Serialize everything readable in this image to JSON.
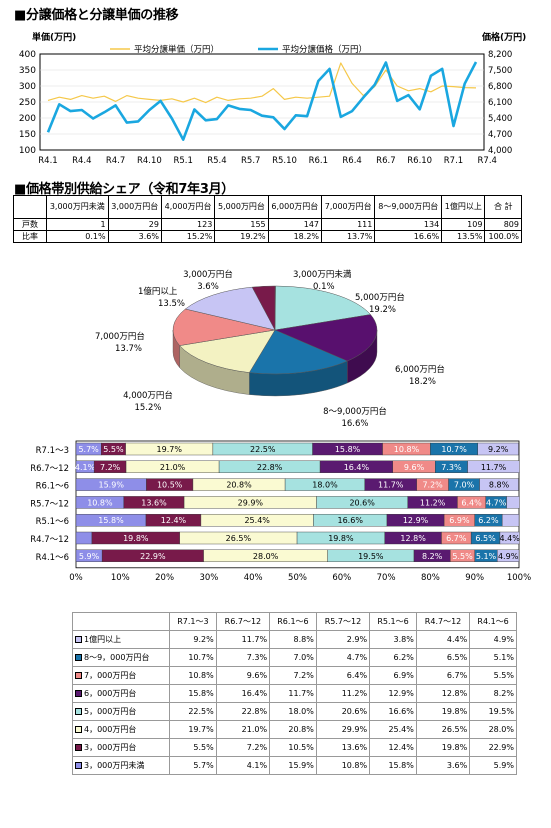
{
  "titles": {
    "line": "■分譲価格と分譲単価の推移",
    "share": "■価格帯別供給シェア（令和7年3月）"
  },
  "chart_data": [
    {
      "type": "line",
      "ylabel": "単価(万円)",
      "y2label": "価格(万円)",
      "ylim": [
        100,
        400
      ],
      "yticks": [
        "100",
        "150",
        "200",
        "250",
        "300",
        "350",
        "400"
      ],
      "y2lim": [
        4000,
        8200
      ],
      "y2ticks": [
        "4,000",
        "4,700",
        "5,400",
        "6,100",
        "6,800",
        "7,500",
        "8,200"
      ],
      "x_ticks": [
        "R4.1",
        "R4.4",
        "R4.7",
        "R4.10",
        "R5.1",
        "R5.4",
        "R5.7",
        "R5.10",
        "R6.1",
        "R6.4",
        "R6.7",
        "R6.10",
        "R7.1",
        "R7.4"
      ],
      "x_count": 39,
      "series": [
        {
          "name": "平均分譲単価（万円）",
          "axis": "left",
          "color": "#f5c84a",
          "values": [
            255,
            265,
            258,
            270,
            262,
            268,
            252,
            270,
            262,
            258,
            255,
            260,
            250,
            262,
            248,
            265,
            255,
            260,
            262,
            268,
            292,
            258,
            265,
            262,
            265,
            268,
            372,
            308,
            270,
            298,
            350,
            300,
            285,
            292,
            282,
            300,
            298,
            295,
            294
          ]
        },
        {
          "name": "平均分譲価格（万円）",
          "axis": "right",
          "color": "#1aa7e0",
          "values": [
            4780,
            6000,
            5700,
            5750,
            5380,
            5650,
            5950,
            5200,
            5250,
            5750,
            6150,
            5380,
            4450,
            5770,
            5300,
            5350,
            5950,
            5800,
            5750,
            5500,
            5430,
            4920,
            5520,
            5480,
            7020,
            7550,
            5450,
            5700,
            6300,
            6850,
            7830,
            6150,
            6400,
            5780,
            7250,
            7550,
            5050,
            6900,
            7850
          ]
        }
      ]
    },
    {
      "type": "table",
      "columns": [
        "3,000万円未満",
        "3,000万円台",
        "4,000万円台",
        "5,000万円台",
        "6,000万円台",
        "7,000万円台",
        "8〜9,000万円台",
        "1億円以上",
        "合 計"
      ],
      "rows": [
        {
          "label": "戸数",
          "values": [
            "1",
            "29",
            "123",
            "155",
            "147",
            "111",
            "134",
            "109",
            "809"
          ]
        },
        {
          "label": "比率",
          "values": [
            "0.1%",
            "3.6%",
            "15.2%",
            "19.2%",
            "18.2%",
            "13.7%",
            "16.6%",
            "13.5%",
            "100.0%"
          ]
        }
      ]
    },
    {
      "type": "pie",
      "slices": [
        {
          "label": "3,000万円未満",
          "value": 0.1,
          "pct": "0.1%",
          "color": "#8e8ee8"
        },
        {
          "label": "5,000万円台",
          "value": 19.2,
          "pct": "19.2%",
          "color": "#a6e2e0"
        },
        {
          "label": "6,000万円台",
          "value": 18.2,
          "pct": "18.2%",
          "color": "#58106e"
        },
        {
          "label": "8〜9,000万円台",
          "value": 16.6,
          "pct": "16.6%",
          "color": "#1a74aa"
        },
        {
          "label": "4,000万円台",
          "value": 15.2,
          "pct": "15.2%",
          "color": "#f3f2c2"
        },
        {
          "label": "7,000万円台",
          "value": 13.7,
          "pct": "13.7%",
          "color": "#f08a88"
        },
        {
          "label": "1億円以上",
          "value": 13.5,
          "pct": "13.5%",
          "color": "#c7c5f4"
        },
        {
          "label": "3,000万円台",
          "value": 3.6,
          "pct": "3.6%",
          "color": "#781a4a"
        }
      ]
    },
    {
      "type": "bar",
      "orientation": "horizontal",
      "stacked": true,
      "xlim": [
        0,
        100
      ],
      "xticks": [
        "0%",
        "10%",
        "20%",
        "30%",
        "40%",
        "50%",
        "60%",
        "70%",
        "80%",
        "90%",
        "100%"
      ],
      "categories": [
        "R7.1～3",
        "R6.7～12",
        "R6.1～6",
        "R5.7～12",
        "R5.1～6",
        "R4.7～12",
        "R4.1～6"
      ],
      "series": [
        {
          "name": "3,000万円未満",
          "color": "#8e8ee8",
          "values": [
            5.7,
            4.1,
            15.9,
            10.8,
            15.8,
            3.6,
            5.9
          ],
          "labels": [
            "5.7%",
            "4.1%",
            "15.9%",
            "10.8%",
            "15.8%",
            "",
            "5.9%"
          ]
        },
        {
          "name": "3,000万円台",
          "color": "#781a4a",
          "values": [
            5.5,
            7.2,
            10.5,
            13.6,
            12.4,
            19.8,
            22.9
          ],
          "labels": [
            "5.5%",
            "7.2%",
            "10.5%",
            "13.6%",
            "12.4%",
            "19.8%",
            "22.9%"
          ]
        },
        {
          "name": "4,000万円台",
          "color": "#fafad2",
          "values": [
            19.7,
            21.0,
            20.8,
            29.9,
            25.4,
            26.5,
            28.0
          ],
          "labels": [
            "19.7%",
            "21.0%",
            "20.8%",
            "29.9%",
            "25.4%",
            "26.5%",
            "28.0%"
          ]
        },
        {
          "name": "5,000万円台",
          "color": "#a6e2e0",
          "values": [
            22.5,
            22.8,
            18.0,
            20.6,
            16.6,
            19.8,
            19.5
          ],
          "labels": [
            "22.5%",
            "22.8%",
            "18.0%",
            "20.6%",
            "16.6%",
            "19.8%",
            "19.5%"
          ]
        },
        {
          "name": "6,000万円台",
          "color": "#5a1a70",
          "values": [
            15.8,
            16.4,
            11.7,
            11.2,
            12.9,
            12.8,
            8.2
          ],
          "labels": [
            "15.8%",
            "16.4%",
            "11.7%",
            "11.2%",
            "12.9%",
            "12.8%",
            "8.2%"
          ]
        },
        {
          "name": "7,000万円台",
          "color": "#f08a88",
          "values": [
            10.8,
            9.6,
            7.2,
            6.4,
            6.9,
            6.7,
            5.5
          ],
          "labels": [
            "10.8%",
            "9.6%",
            "7.2%",
            "6.4%",
            "6.9%",
            "6.7%",
            "5.5%"
          ]
        },
        {
          "name": "8～9,000万円台",
          "color": "#1a74aa",
          "values": [
            10.7,
            7.3,
            7.0,
            4.7,
            6.2,
            6.5,
            5.1
          ],
          "labels": [
            "10.7%",
            "7.3%",
            "7.0%",
            "4.7%",
            "6.2%",
            "6.5%",
            "5.1%"
          ]
        },
        {
          "name": "1億円以上",
          "color": "#c7c5f4",
          "values": [
            9.2,
            11.7,
            8.8,
            2.9,
            3.8,
            4.4,
            4.9
          ],
          "labels": [
            "9.2%",
            "11.7%",
            "8.8%",
            "",
            "",
            "4.4%",
            "4.9%"
          ]
        }
      ]
    },
    {
      "type": "table",
      "columns": [
        "R7.1～3",
        "R6.7～12",
        "R6.1～6",
        "R5.7～12",
        "R5.1～6",
        "R4.7～12",
        "R4.1～6"
      ],
      "rows": [
        {
          "label": "1億円以上",
          "color": "#c7c5f4",
          "values": [
            "9.2%",
            "11.7%",
            "8.8%",
            "2.9%",
            "3.8%",
            "4.4%",
            "4.9%"
          ]
        },
        {
          "label": "8～9，000万円台",
          "color": "#1a74aa",
          "values": [
            "10.7%",
            "7.3%",
            "7.0%",
            "4.7%",
            "6.2%",
            "6.5%",
            "5.1%"
          ]
        },
        {
          "label": "7，000万円台",
          "color": "#f08a88",
          "values": [
            "10.8%",
            "9.6%",
            "7.2%",
            "6.4%",
            "6.9%",
            "6.7%",
            "5.5%"
          ]
        },
        {
          "label": "6，000万円台",
          "color": "#5a1a70",
          "values": [
            "15.8%",
            "16.4%",
            "11.7%",
            "11.2%",
            "12.9%",
            "12.8%",
            "8.2%"
          ]
        },
        {
          "label": "5，000万円台",
          "color": "#a6e2e0",
          "values": [
            "22.5%",
            "22.8%",
            "18.0%",
            "20.6%",
            "16.6%",
            "19.8%",
            "19.5%"
          ]
        },
        {
          "label": "4，000万円台",
          "color": "#fafad2",
          "values": [
            "19.7%",
            "21.0%",
            "20.8%",
            "29.9%",
            "25.4%",
            "26.5%",
            "28.0%"
          ]
        },
        {
          "label": "3，000万円台",
          "color": "#781a4a",
          "values": [
            "5.5%",
            "7.2%",
            "10.5%",
            "13.6%",
            "12.4%",
            "19.8%",
            "22.9%"
          ]
        },
        {
          "label": "3，000万円未満",
          "color": "#8e8ee8",
          "values": [
            "5.7%",
            "4.1%",
            "15.9%",
            "10.8%",
            "15.8%",
            "3.6%",
            "5.9%"
          ]
        }
      ]
    }
  ]
}
